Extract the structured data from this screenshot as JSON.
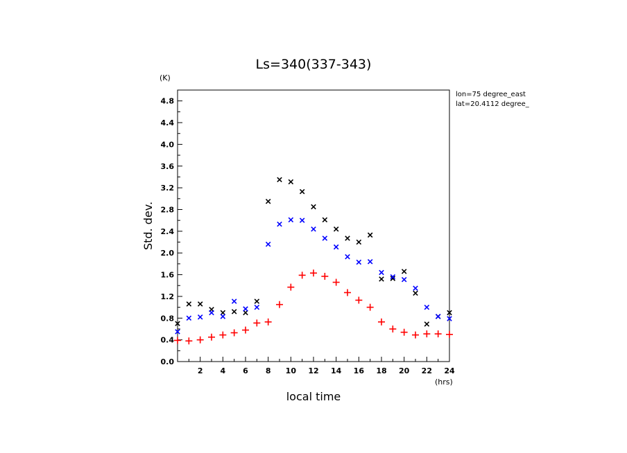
{
  "chart_data": {
    "type": "scatter",
    "title": "Ls=340(337-343)",
    "xlabel": "local time",
    "ylabel": "Std. dev.",
    "x_unit": "(hrs)",
    "y_unit": "(K)",
    "xlim": [
      0,
      24
    ],
    "ylim": [
      0,
      5.0
    ],
    "x_ticks": [
      2,
      4,
      6,
      8,
      10,
      12,
      14,
      16,
      18,
      20,
      22,
      24
    ],
    "x_tick_labels": [
      "2",
      "4",
      "6",
      "8",
      "10",
      "12",
      "14",
      "16",
      "18",
      "20",
      "22",
      "24"
    ],
    "y_ticks": [
      0.0,
      0.4,
      0.8,
      1.2,
      1.6,
      2.0,
      2.4,
      2.8,
      3.2,
      3.6,
      4.0,
      4.4,
      4.8
    ],
    "y_tick_labels": [
      "0.0",
      "0.4",
      "0.8",
      "1.2",
      "1.6",
      "2.0",
      "2.4",
      "2.8",
      "3.2",
      "3.6",
      "4.0",
      "4.4",
      "4.8"
    ],
    "annotations": [
      "lon=75 degree_east",
      "lat=20.4112 degree_"
    ],
    "grid": false,
    "series": [
      {
        "marker": "x",
        "color": "#000000",
        "x": [
          0,
          1,
          2,
          3,
          4,
          5,
          6,
          7,
          8,
          9,
          10,
          11,
          12,
          13,
          14,
          15,
          16,
          17,
          18,
          19,
          20,
          21,
          22,
          23,
          24
        ],
        "y": [
          0.7,
          1.06,
          1.06,
          0.96,
          0.9,
          0.92,
          0.9,
          1.11,
          2.95,
          3.35,
          3.31,
          3.13,
          2.85,
          2.61,
          2.44,
          2.27,
          2.2,
          2.33,
          1.52,
          1.53,
          1.66,
          1.26,
          0.69,
          0.83,
          0.9
        ]
      },
      {
        "marker": "x",
        "color": "#0000ff",
        "x": [
          0,
          1,
          2,
          3,
          4,
          5,
          6,
          7,
          8,
          9,
          10,
          11,
          12,
          13,
          14,
          15,
          16,
          17,
          18,
          19,
          20,
          21,
          22,
          23,
          24
        ],
        "y": [
          0.55,
          0.8,
          0.82,
          0.9,
          0.83,
          1.11,
          0.97,
          1.0,
          2.16,
          2.53,
          2.61,
          2.6,
          2.44,
          2.27,
          2.11,
          1.93,
          1.83,
          1.84,
          1.64,
          1.56,
          1.51,
          1.35,
          1.0,
          0.83,
          0.79
        ]
      },
      {
        "marker": "+",
        "color": "#ff0000",
        "x": [
          0,
          1,
          2,
          3,
          4,
          5,
          6,
          7,
          8,
          9,
          10,
          11,
          12,
          13,
          14,
          15,
          16,
          17,
          18,
          19,
          20,
          21,
          22,
          23,
          24
        ],
        "y": [
          0.39,
          0.38,
          0.4,
          0.45,
          0.49,
          0.53,
          0.58,
          0.71,
          0.73,
          1.05,
          1.37,
          1.59,
          1.63,
          1.57,
          1.46,
          1.27,
          1.13,
          1.0,
          0.73,
          0.6,
          0.54,
          0.49,
          0.51,
          0.51,
          0.5
        ]
      }
    ]
  }
}
